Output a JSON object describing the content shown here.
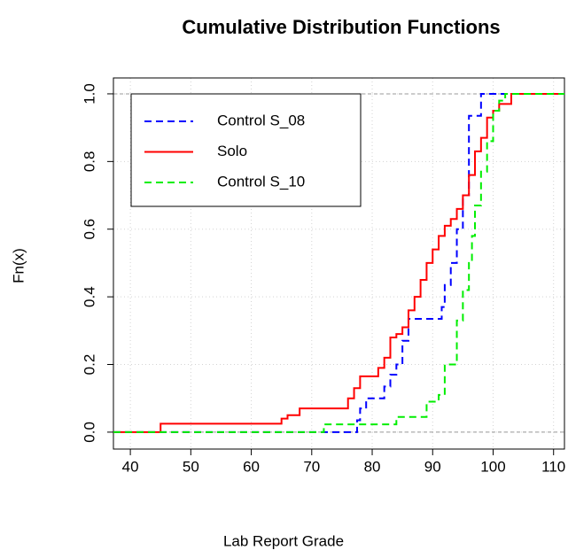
{
  "chart_data": {
    "type": "step",
    "title": "Cumulative Distribution Functions",
    "xlabel": "Lab Report Grade",
    "ylabel": "Fn(x)",
    "xlim": [
      37.2,
      111.8
    ],
    "ylim": [
      -0.05,
      1.047
    ],
    "xticks": [
      40,
      50,
      60,
      70,
      80,
      90,
      100,
      110
    ],
    "yticks": [
      {
        "value": 0,
        "label": "0.0"
      },
      {
        "value": 0.2,
        "label": "0.2"
      },
      {
        "value": 0.4,
        "label": "0.4"
      },
      {
        "value": 0.6,
        "label": "0.6"
      },
      {
        "value": 0.8,
        "label": "0.8"
      },
      {
        "value": 1,
        "label": "1.0"
      }
    ],
    "grid": true,
    "reference_lines": [
      0,
      1
    ],
    "legend": "top-left",
    "series": [
      {
        "name": "Control S_08",
        "color": "#0000ff",
        "dashed": true,
        "x": [
          77.5,
          78,
          79,
          82,
          83,
          84,
          85,
          86,
          91.5,
          92,
          93,
          94,
          95,
          96,
          98
        ],
        "values": [
          0.035,
          0.07,
          0.1,
          0.135,
          0.17,
          0.2,
          0.27,
          0.335,
          0.37,
          0.435,
          0.5,
          0.6,
          0.7,
          0.935,
          1.0
        ]
      },
      {
        "name": "Solo",
        "color": "#ff0000",
        "dashed": false,
        "x": [
          45,
          65,
          66,
          68,
          76,
          77,
          78,
          81,
          82,
          83,
          84,
          85,
          86,
          87,
          88,
          89,
          90,
          91,
          92,
          93,
          94,
          95,
          96,
          97,
          98,
          99,
          100,
          101,
          103
        ],
        "values": [
          0.025,
          0.04,
          0.05,
          0.07,
          0.1,
          0.13,
          0.165,
          0.19,
          0.22,
          0.28,
          0.29,
          0.31,
          0.36,
          0.4,
          0.45,
          0.5,
          0.54,
          0.58,
          0.61,
          0.63,
          0.66,
          0.7,
          0.76,
          0.83,
          0.87,
          0.93,
          0.95,
          0.97,
          1.0
        ]
      },
      {
        "name": "Control S_10",
        "color": "#00ee00",
        "dashed": true,
        "x": [
          72,
          84,
          89,
          91,
          92,
          94,
          95,
          96,
          96.5,
          97,
          98,
          99,
          100,
          101,
          102
        ],
        "values": [
          0.023,
          0.045,
          0.09,
          0.11,
          0.2,
          0.33,
          0.42,
          0.5,
          0.58,
          0.67,
          0.77,
          0.86,
          0.95,
          0.98,
          1.0
        ]
      }
    ]
  }
}
